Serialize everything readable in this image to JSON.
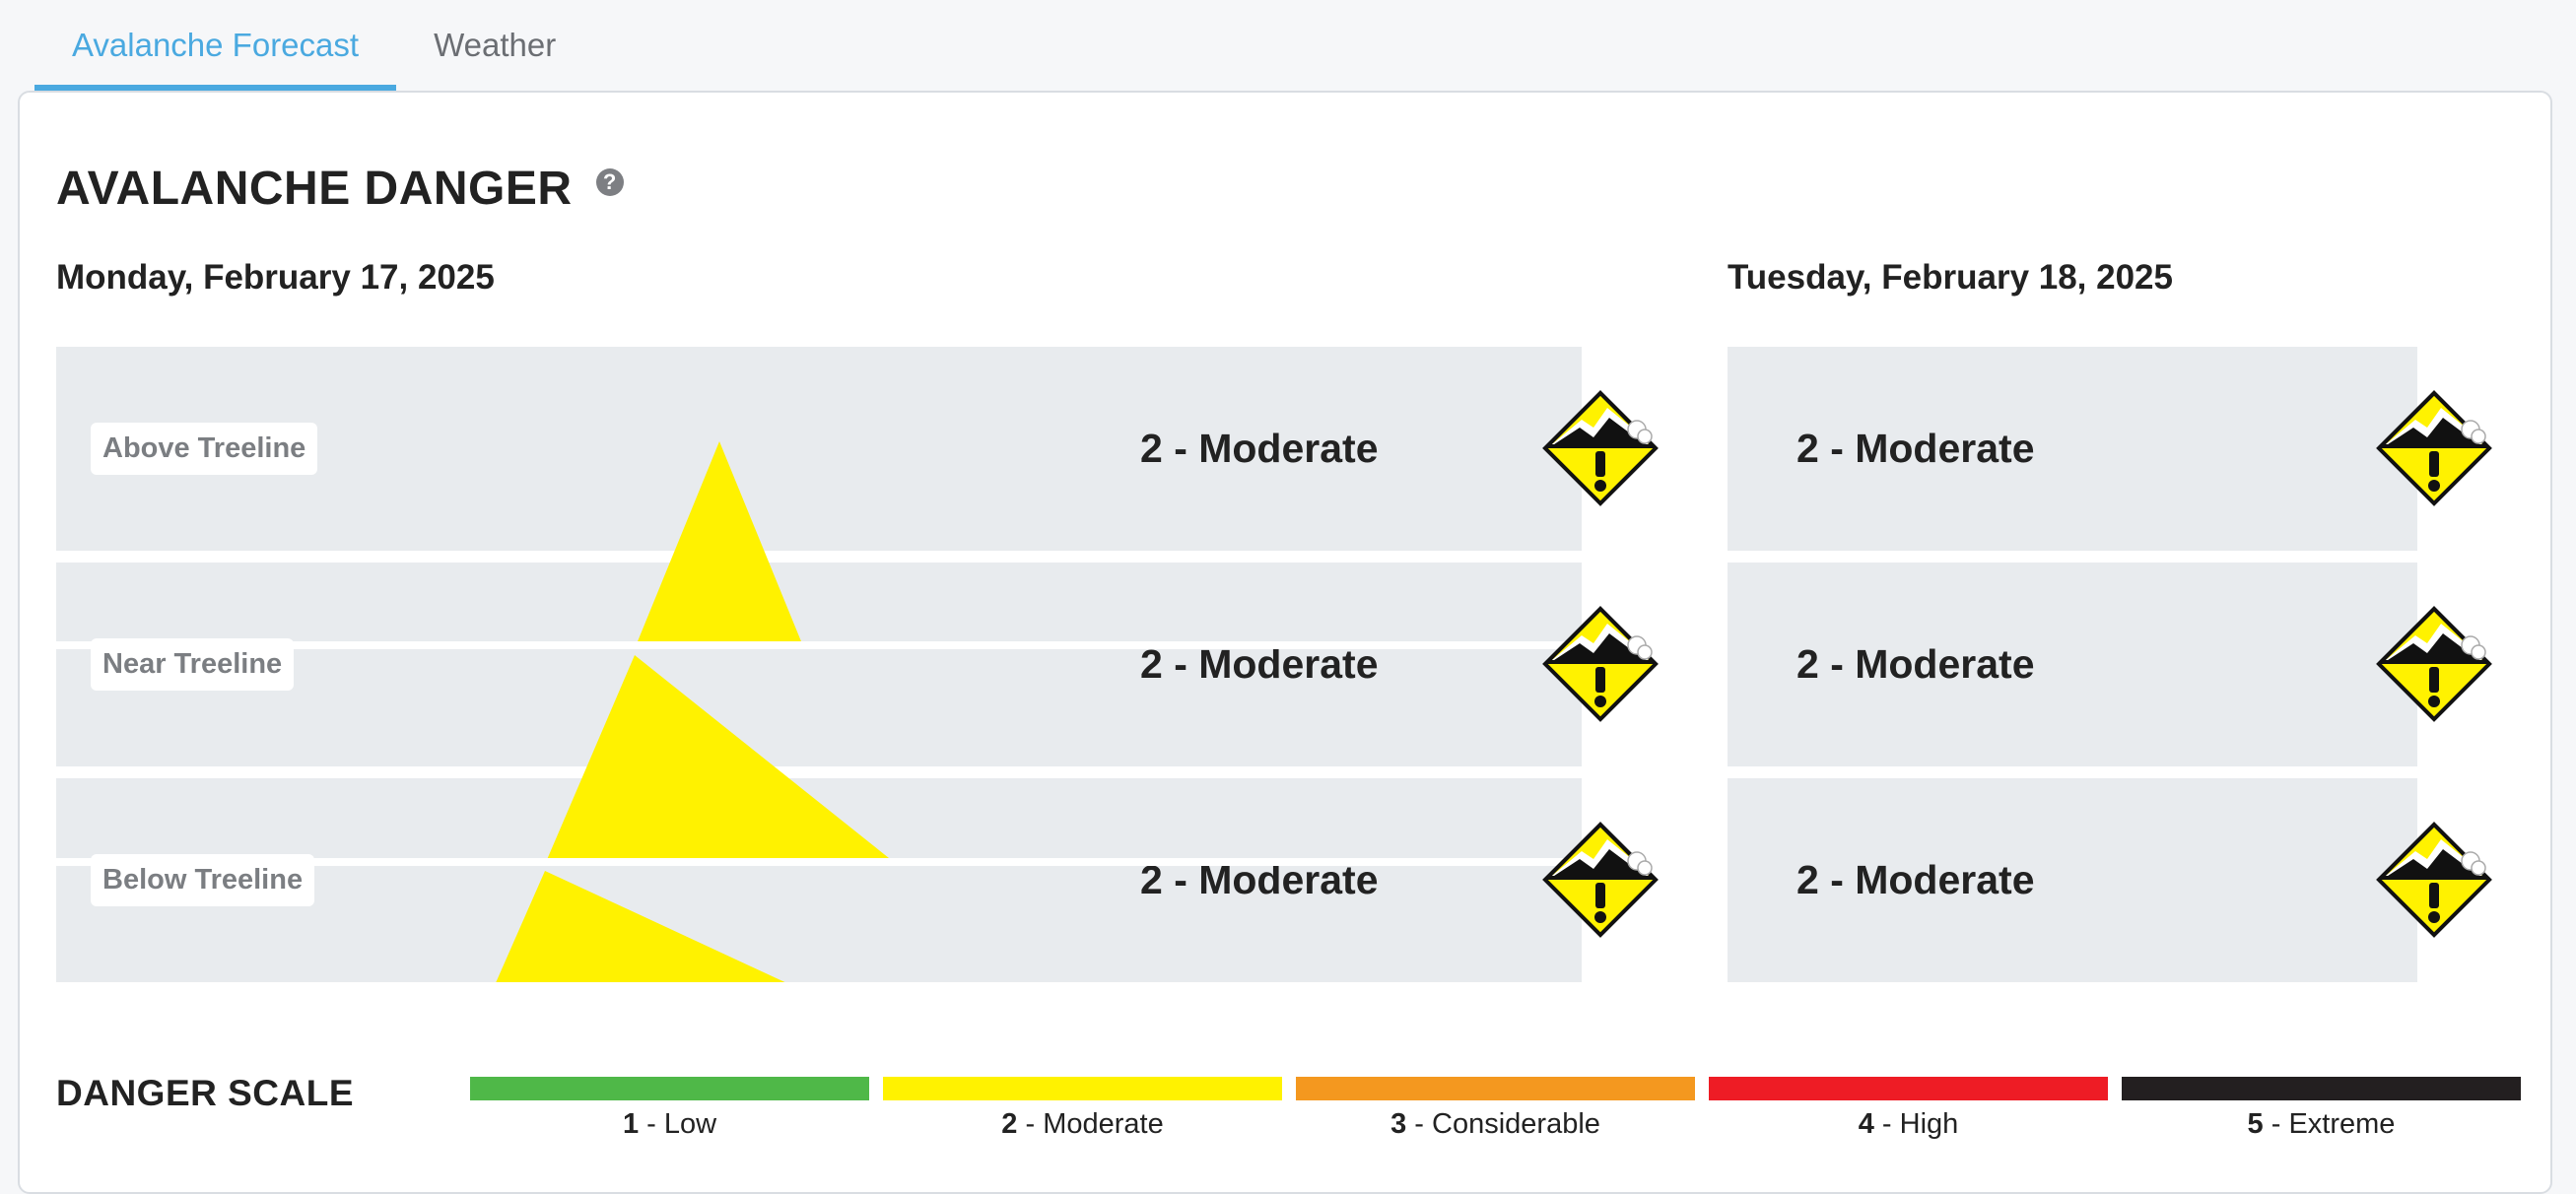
{
  "tabs": [
    {
      "label": "Avalanche Forecast",
      "active": true
    },
    {
      "label": "Weather",
      "active": false
    }
  ],
  "section_title": "AVALANCHE DANGER",
  "help_icon": "question-circle-icon",
  "days": [
    {
      "date": "Monday, February 17, 2025",
      "rows": [
        {
          "elevation": "Above Treeline",
          "rating": "2 - Moderate"
        },
        {
          "elevation": "Near Treeline",
          "rating": "2 - Moderate"
        },
        {
          "elevation": "Below Treeline",
          "rating": "2 - Moderate"
        }
      ]
    },
    {
      "date": "Tuesday, February 18, 2025",
      "rows": [
        {
          "rating": "2 - Moderate"
        },
        {
          "rating": "2 - Moderate"
        },
        {
          "rating": "2 - Moderate"
        }
      ]
    }
  ],
  "danger_icon": "moderate-danger-icon",
  "danger_scale": {
    "title": "DANGER SCALE",
    "levels": [
      {
        "number": "1",
        "label": " - Low",
        "color": "#4fb848"
      },
      {
        "number": "2",
        "label": " - Moderate",
        "color": "#fff200"
      },
      {
        "number": "3",
        "label": " - Considerable",
        "color": "#f4981f"
      },
      {
        "number": "4",
        "label": " - High",
        "color": "#ee1c25"
      },
      {
        "number": "5",
        "label": " - Extreme",
        "color": "#231f20"
      }
    ]
  },
  "colors": {
    "accent": "#4aa9e0",
    "moderate": "#fff200",
    "row_bg": "#e8ebee"
  }
}
